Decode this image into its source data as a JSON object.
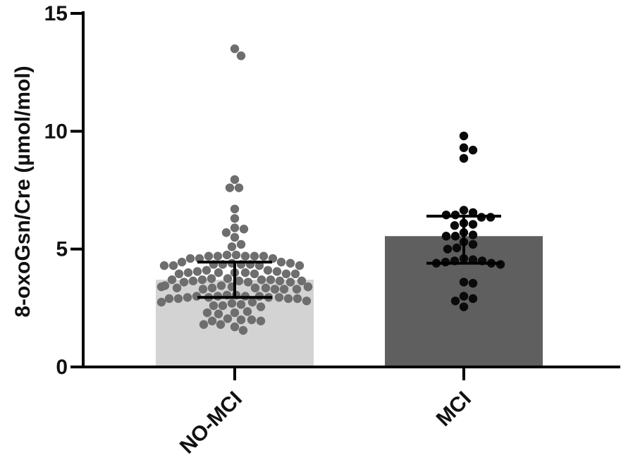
{
  "chart_data": {
    "type": "bar",
    "title": "",
    "xlabel": "",
    "ylabel": "8-oxoGsn/Cre (µmol/mol)",
    "ylim": [
      0,
      15
    ],
    "yticks": [
      0,
      5,
      10,
      15
    ],
    "grid": false,
    "categories": [
      "NO-MCI",
      "MCI"
    ],
    "values": [
      3.7,
      5.55
    ],
    "error_bars": [
      {
        "low": 2.95,
        "high": 4.45
      },
      {
        "low": 4.4,
        "high": 6.4
      }
    ],
    "bar_colors": [
      "#d3d3d3",
      "#5f5f5f"
    ],
    "point_colors": [
      "#6e6e6e",
      "#0a0a0a"
    ],
    "points": [
      [
        13.5,
        13.2,
        7.95,
        7.6,
        7.6,
        6.7,
        6.3,
        5.9,
        5.85,
        5.7,
        5.5,
        5.2,
        5.1,
        4.75,
        4.75,
        4.7,
        4.7,
        4.7,
        4.7,
        4.7,
        4.6,
        4.6,
        4.6,
        4.45,
        4.45,
        4.4,
        4.4,
        4.35,
        4.35,
        4.35,
        4.35,
        4.3,
        4.3,
        4.3,
        4.3,
        4.1,
        4.1,
        4.05,
        4.05,
        4.0,
        4.0,
        4.0,
        4.0,
        3.95,
        3.95,
        3.95,
        3.95,
        3.75,
        3.75,
        3.7,
        3.7,
        3.7,
        3.7,
        3.65,
        3.65,
        3.65,
        3.65,
        3.6,
        3.6,
        3.6,
        3.45,
        3.45,
        3.4,
        3.4,
        3.4,
        3.4,
        3.35,
        3.35,
        3.35,
        3.35,
        3.3,
        3.3,
        3.3,
        3.3,
        3.05,
        3.05,
        3.0,
        3.0,
        3.0,
        3.0,
        2.95,
        2.95,
        2.95,
        2.95,
        2.9,
        2.9,
        2.9,
        2.9,
        2.8,
        2.75,
        2.75,
        2.7,
        2.65,
        2.6,
        2.6,
        2.55,
        2.35,
        2.3,
        2.3,
        2.25,
        2.05,
        2.0,
        2.0,
        1.95,
        1.95,
        1.8,
        1.8,
        1.7,
        1.55
      ],
      [
        9.8,
        9.3,
        9.2,
        8.85,
        6.65,
        6.55,
        6.45,
        6.45,
        6.35,
        6.35,
        6.1,
        6.05,
        6.0,
        5.7,
        5.6,
        5.55,
        5.55,
        5.3,
        5.2,
        5.05,
        5.0,
        4.6,
        4.55,
        4.5,
        4.5,
        4.45,
        4.4,
        4.4,
        4.35,
        3.6,
        3.55,
        3.0,
        2.9,
        2.8,
        2.55
      ]
    ]
  }
}
